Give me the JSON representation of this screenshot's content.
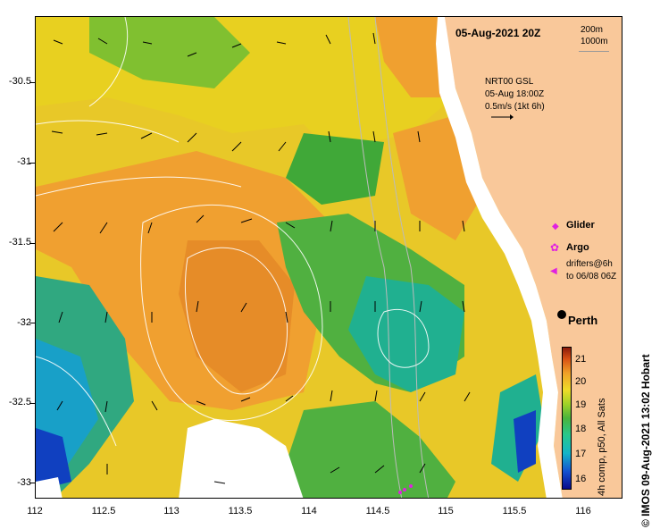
{
  "map": {
    "title": "05-Aug-2021 20Z",
    "y_ticks": [
      "-30.5",
      "-31",
      "-31.5",
      "-32",
      "-32.5",
      "-33"
    ],
    "x_ticks": [
      "112",
      "112.5",
      "113",
      "113.5",
      "114",
      "114.5",
      "115",
      "115.5",
      "116"
    ],
    "depth_contours": [
      "200m",
      "1000m"
    ]
  },
  "velocity_legend": {
    "source": "NRT00 GSL",
    "time": "05-Aug 18:00Z",
    "scale": "0.5m/s (1kt 6h)"
  },
  "legend": {
    "glider": "Glider",
    "argo": "Argo",
    "drifters_line1": "drifters@6h",
    "drifters_line2": "to 06/08 06Z",
    "glider_color": "#e020e0",
    "argo_color": "#e020e0",
    "drifter_color": "#e020e0"
  },
  "place": {
    "perth": "Perth"
  },
  "colorbar": {
    "ticks": [
      "21",
      "20",
      "19",
      "18",
      "17",
      "16"
    ],
    "caption": "4h comp, p50, All Sats",
    "range": [
      15.6,
      21.6
    ]
  },
  "credit": "© IMOS 09-Aug-2021 13:02 Hobart",
  "colors": {
    "land": "#f9c89a",
    "warm": "#f0a030",
    "mid": "#e8d020",
    "cool": "#50b040",
    "cold": "#18b0a0",
    "coldest": "#1040c0"
  }
}
